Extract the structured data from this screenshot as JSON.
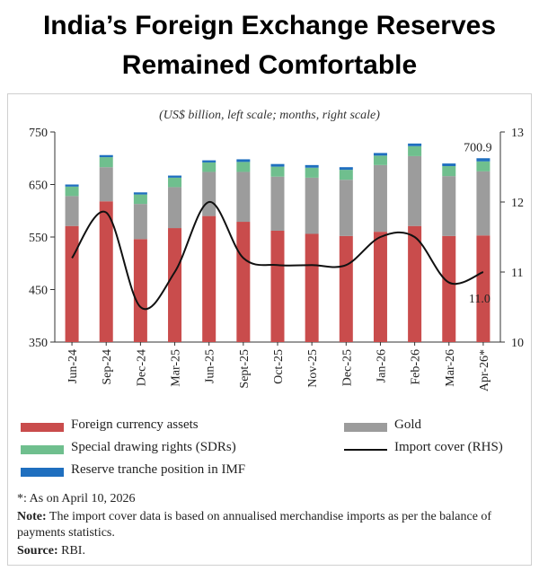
{
  "header": {
    "title_line1": "India’s  Foreign Exchange Reserves",
    "title_line2": "Remained Comfortable"
  },
  "chart_data": {
    "type": "bar",
    "stacked": true,
    "subtitle": "(US$ billion, left scale; months, right scale)",
    "categories": [
      "Jun-24",
      "Sep-24",
      "Dec-24",
      "Mar-25",
      "Jun-25",
      "Sept-25",
      "Oct-25",
      "Nov-25",
      "Dec-25",
      "Jan-26",
      "Feb-26",
      "Mar-26",
      "Apr-26*"
    ],
    "left_axis": {
      "min": 350,
      "max": 750,
      "ticks": [
        350,
        450,
        550,
        650,
        750
      ]
    },
    "right_axis": {
      "min": 10,
      "max": 13,
      "ticks": [
        10,
        11,
        12,
        13
      ]
    },
    "series": [
      {
        "name": "Foreign currency assets",
        "color": "#c94c4c",
        "values": [
          571,
          618,
          546,
          567,
          590,
          579,
          562,
          556,
          552,
          560,
          571,
          552,
          553
        ]
      },
      {
        "name": "Gold",
        "color": "#9c9c9c",
        "values": [
          57,
          65,
          67,
          78,
          84,
          95,
          103,
          107,
          107,
          127,
          133,
          114,
          122
        ]
      },
      {
        "name": "Special drawing rights (SDRs)",
        "color": "#6fbf8e",
        "values": [
          18,
          19,
          18,
          18,
          18,
          19,
          19,
          19,
          19,
          18,
          19,
          19,
          19
        ]
      },
      {
        "name": "Reserve tranche position in IMF",
        "color": "#1f6fbf",
        "values": [
          4,
          4,
          4,
          4,
          4,
          5,
          5,
          5,
          5,
          5,
          5,
          5,
          6
        ]
      }
    ],
    "line": {
      "name": "Import cover (RHS)",
      "color": "#111111",
      "values": [
        11.2,
        11.85,
        10.5,
        11.0,
        12.0,
        11.2,
        11.1,
        11.1,
        11.1,
        11.5,
        11.5,
        10.85,
        11.0
      ]
    },
    "annotations": {
      "last_total": "700.9",
      "last_cover": "11.0"
    }
  },
  "legend": [
    {
      "label": "Foreign currency assets",
      "color": "#c94c4c",
      "kind": "bar"
    },
    {
      "label": "Gold",
      "color": "#9c9c9c",
      "kind": "bar"
    },
    {
      "label": "Special drawing rights (SDRs)",
      "color": "#6fbf8e",
      "kind": "bar"
    },
    {
      "label": "Import cover (RHS)",
      "color": "#111111",
      "kind": "line"
    },
    {
      "label": "Reserve tranche position in IMF",
      "color": "#1f6fbf",
      "kind": "bar"
    }
  ],
  "notes": {
    "footnote": "*: As on April 10, 2026",
    "note_label": "Note:",
    "note_text": " The import cover data is based on annualised merchandise imports as per the balance of payments statistics.",
    "source_label": "Source:",
    "source_text": " RBI."
  }
}
